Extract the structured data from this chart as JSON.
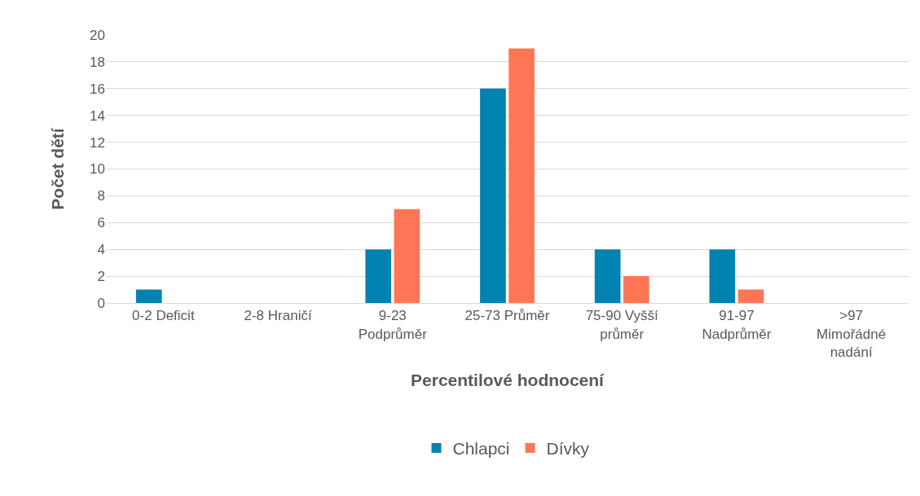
{
  "chart_data": {
    "type": "bar",
    "xlabel": "Percentilové hodnocení",
    "ylabel": "Počet dětí",
    "categories": [
      "0-2 Deficit",
      "2-8 Hraničí",
      "9-23 Podprůměr",
      "25-73 Průměr",
      "75-90 Vyšší průměr",
      "91-97 Nadprůměr",
      ">97 Mimořádné nadání"
    ],
    "series": [
      {
        "name": "Chlapci",
        "color": "#0083b0",
        "values": [
          1,
          0,
          4,
          16,
          4,
          4,
          0
        ]
      },
      {
        "name": "Dívky",
        "color": "#ff7556",
        "values": [
          0,
          0,
          7,
          19,
          2,
          1,
          0
        ]
      }
    ],
    "ylim": [
      0,
      20
    ],
    "yticks": [
      0,
      2,
      4,
      6,
      8,
      10,
      12,
      14,
      16,
      18,
      20
    ],
    "grid": "y",
    "legend": "bottom"
  }
}
